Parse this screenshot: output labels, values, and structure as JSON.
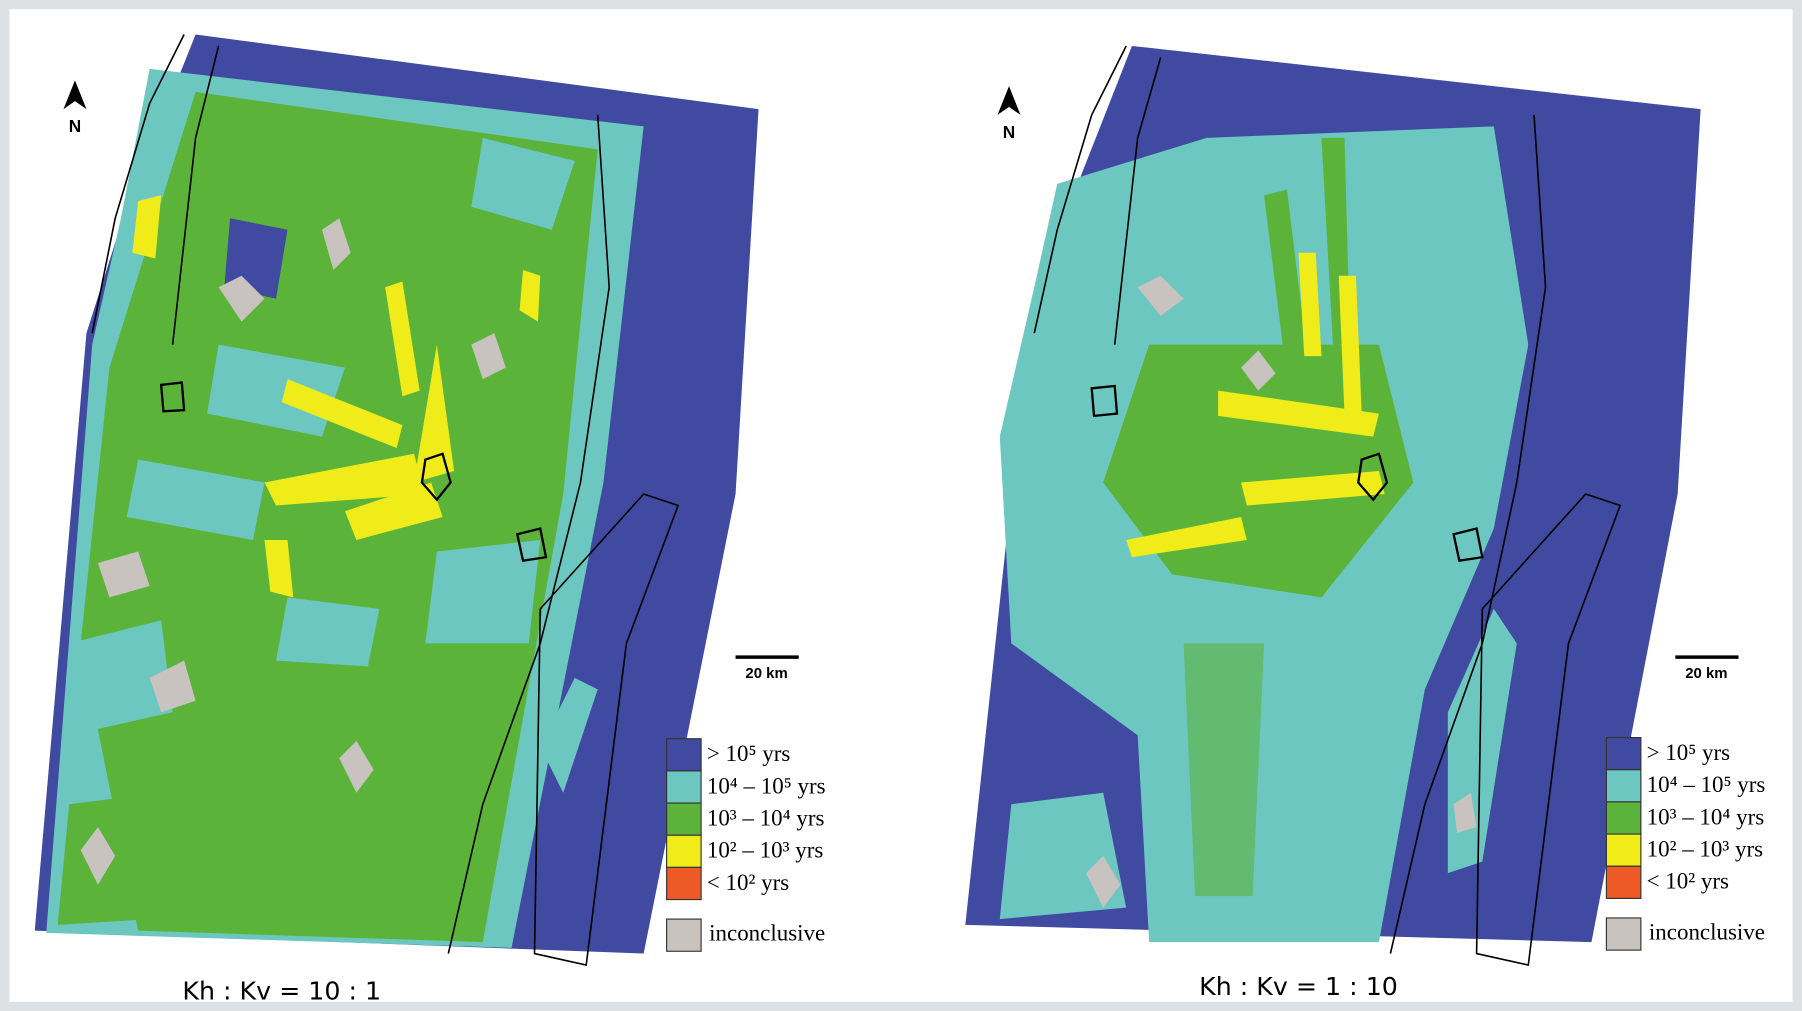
{
  "panels": [
    {
      "north": "N",
      "scale_label": "20 km",
      "caption": "Kh : Kv = 10 : 1",
      "legend": [
        {
          "label": "> 10⁵ yrs",
          "color": "#3f4aa0"
        },
        {
          "label": "10⁴ – 10⁵ yrs",
          "color": "#6cc7c0"
        },
        {
          "label": "10³ – 10⁴ yrs",
          "color": "#5bb33a"
        },
        {
          "label": "10² – 10³ yrs",
          "color": "#f0ec1a"
        },
        {
          "label": "< 10² yrs",
          "color": "#ee5a26"
        }
      ],
      "inconclusive": {
        "label": "inconclusive",
        "color": "#c9c3c0"
      }
    },
    {
      "north": "N",
      "scale_label": "20 km",
      "caption": "Kh : Kv = 1 : 10",
      "legend": [
        {
          "label": "> 10⁵ yrs",
          "color": "#3f4aa0"
        },
        {
          "label": "10⁴ – 10⁵ yrs",
          "color": "#6cc7c0"
        },
        {
          "label": "10³ – 10⁴ yrs",
          "color": "#5bb33a"
        },
        {
          "label": "10² – 10³ yrs",
          "color": "#f0ec1a"
        },
        {
          "label": "< 10² yrs",
          "color": "#ee5a26"
        }
      ],
      "inconclusive": {
        "label": "inconclusive",
        "color": "#c9c3c0"
      }
    }
  ]
}
